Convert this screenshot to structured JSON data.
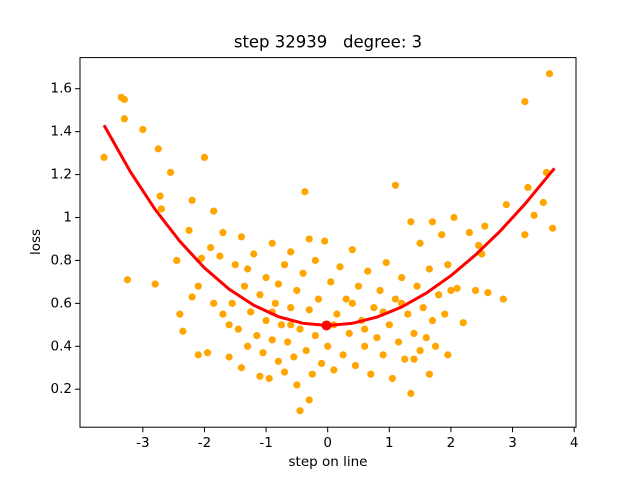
{
  "chart_data": {
    "type": "scatter",
    "title": "step 32939   degree: 3",
    "xlabel": "step on line",
    "ylabel": "loss",
    "xlim": [
      -4.02,
      4.03
    ],
    "ylim": [
      0.023,
      1.745
    ],
    "xticks": [
      -3,
      -2,
      -1,
      0,
      1,
      2,
      3,
      4
    ],
    "yticks": [
      0.2,
      0.4,
      0.6,
      0.8,
      1.0,
      1.2,
      1.4,
      1.6
    ],
    "series": [
      {
        "type": "scatter",
        "color": "#ffa500",
        "x": [
          -3.63,
          -3.35,
          -3.3,
          -3.3,
          -3.25,
          -3.0,
          -2.75,
          -2.7,
          -2.72,
          -2.8,
          -2.55,
          -2.0,
          -2.2,
          -1.85,
          3.6,
          3.2,
          2.9,
          3.25,
          3.35,
          3.5,
          3.55,
          3.65,
          3.2,
          2.85,
          2.6,
          2.2,
          1.1,
          -0.37,
          -0.45,
          -0.3,
          1.35,
          1.65,
          -2.45,
          -2.4,
          -2.35,
          -2.25,
          -2.2,
          -2.1,
          -2.05,
          -1.95,
          -1.9,
          -1.85,
          -1.75,
          -1.7,
          -1.7,
          -1.6,
          -1.55,
          -1.5,
          -1.45,
          -1.4,
          -1.4,
          -1.35,
          -1.3,
          -1.25,
          -1.2,
          -1.15,
          -1.1,
          -1.1,
          -1.05,
          -1.0,
          -1.0,
          -0.95,
          -0.9,
          -0.9,
          -0.85,
          -0.8,
          -0.8,
          -0.75,
          -0.7,
          -0.7,
          -0.65,
          -0.6,
          -0.6,
          -0.55,
          -0.5,
          -0.5,
          -0.45,
          -0.4,
          -0.35,
          -0.3,
          -0.25,
          -0.2,
          -0.2,
          -0.15,
          -0.1,
          -0.05,
          0.0,
          0.05,
          0.1,
          0.15,
          0.2,
          0.25,
          0.3,
          0.35,
          0.4,
          0.45,
          0.5,
          0.55,
          0.6,
          0.65,
          0.7,
          0.75,
          0.8,
          0.85,
          0.9,
          0.95,
          1.0,
          1.05,
          1.1,
          1.15,
          1.2,
          1.25,
          1.3,
          1.35,
          1.4,
          1.45,
          1.5,
          1.5,
          1.55,
          1.6,
          1.65,
          1.7,
          1.7,
          1.75,
          1.8,
          1.85,
          1.9,
          1.95,
          2.0,
          2.05,
          2.1,
          2.3,
          2.45,
          2.5,
          2.55,
          2.4,
          -0.3,
          0.4,
          -1.3,
          1.2,
          0.1,
          -0.9,
          0.9,
          -0.6,
          0.6,
          -1.6,
          1.4,
          -2.1,
          1.95
        ],
        "values": [
          1.28,
          1.56,
          1.55,
          1.46,
          0.71,
          1.41,
          1.32,
          1.04,
          1.1,
          0.69,
          1.21,
          1.28,
          1.08,
          1.03,
          1.67,
          1.54,
          1.06,
          1.14,
          1.01,
          1.07,
          1.21,
          0.95,
          0.92,
          0.62,
          0.65,
          0.51,
          1.15,
          1.12,
          0.1,
          0.15,
          0.18,
          0.27,
          0.8,
          0.55,
          0.47,
          0.94,
          0.63,
          0.68,
          0.81,
          0.37,
          0.86,
          0.6,
          0.82,
          0.93,
          0.55,
          0.35,
          0.6,
          0.78,
          0.48,
          0.3,
          0.91,
          0.68,
          0.4,
          0.56,
          0.83,
          0.45,
          0.26,
          0.64,
          0.37,
          0.72,
          0.52,
          0.25,
          0.88,
          0.43,
          0.6,
          0.33,
          0.69,
          0.5,
          0.78,
          0.28,
          0.42,
          0.58,
          0.84,
          0.35,
          0.66,
          0.22,
          0.48,
          0.74,
          0.38,
          0.57,
          0.27,
          0.8,
          0.45,
          0.62,
          0.32,
          0.89,
          0.4,
          0.7,
          0.29,
          0.55,
          0.77,
          0.36,
          0.62,
          0.46,
          0.85,
          0.31,
          0.68,
          0.52,
          0.4,
          0.75,
          0.27,
          0.58,
          0.44,
          0.66,
          0.36,
          0.79,
          0.5,
          0.25,
          0.62,
          0.42,
          0.72,
          0.34,
          0.55,
          0.98,
          0.46,
          0.68,
          0.38,
          0.88,
          0.58,
          0.44,
          0.76,
          0.52,
          0.98,
          0.4,
          0.64,
          0.92,
          0.55,
          0.78,
          0.66,
          1.0,
          0.67,
          0.93,
          0.87,
          0.83,
          0.96,
          0.66,
          0.9,
          0.6,
          0.76,
          0.6,
          0.5,
          0.56,
          0.56,
          0.5,
          0.48,
          0.5,
          0.34,
          0.36,
          0.36
        ]
      },
      {
        "type": "line",
        "color": "#ff0000",
        "x": [
          -3.63,
          -3.2,
          -2.8,
          -2.4,
          -2.0,
          -1.6,
          -1.2,
          -0.8,
          -0.4,
          0.0,
          0.4,
          0.8,
          1.2,
          1.6,
          2.0,
          2.4,
          2.8,
          3.2,
          3.68
        ],
        "values": [
          1.43,
          1.212,
          1.037,
          0.889,
          0.765,
          0.666,
          0.591,
          0.538,
          0.507,
          0.497,
          0.507,
          0.536,
          0.583,
          0.648,
          0.729,
          0.826,
          0.937,
          1.062,
          1.229
        ]
      },
      {
        "type": "point",
        "color": "#ff0000",
        "x": [
          -0.02
        ],
        "values": [
          0.497
        ]
      }
    ]
  }
}
